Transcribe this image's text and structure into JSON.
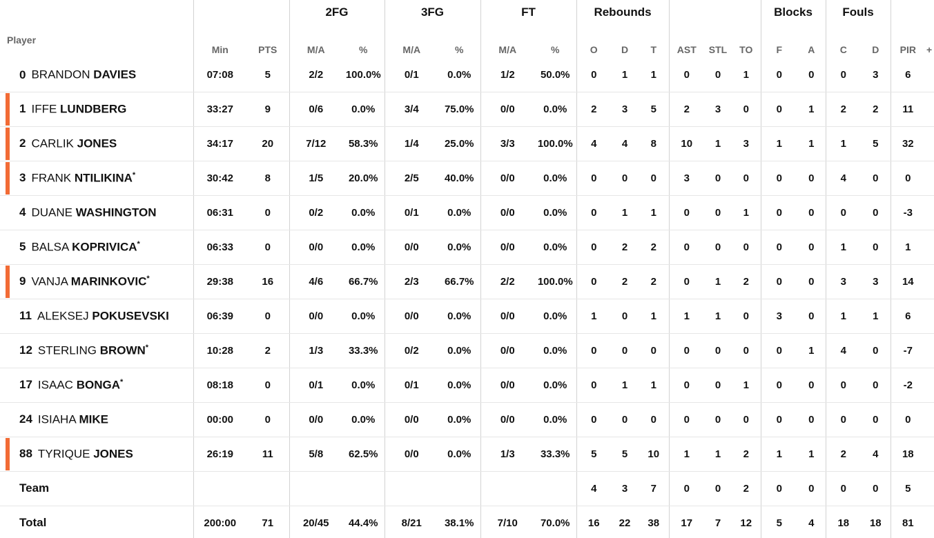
{
  "groups": {
    "fg2": "2FG",
    "fg3": "3FG",
    "ft": "FT",
    "reb": "Rebounds",
    "blk": "Blocks",
    "fouls": "Fouls"
  },
  "headers": {
    "player": "Player",
    "min": "Min",
    "pts": "PTS",
    "fg2_ma": "M/A",
    "fg2_pct": "%",
    "fg3_ma": "M/A",
    "fg3_pct": "%",
    "ft_ma": "M/A",
    "ft_pct": "%",
    "o": "O",
    "d": "D",
    "t": "T",
    "ast": "AST",
    "stl": "STL",
    "to": "TO",
    "blk_f": "F",
    "blk_a": "A",
    "foul_c": "C",
    "foul_d": "D",
    "pir": "PIR",
    "more": "+"
  },
  "players": [
    {
      "num": "0",
      "first": "BRANDON",
      "last": "DAVIES",
      "star": "",
      "starter": false,
      "min": "07:08",
      "pts": "5",
      "fg2": "2/2",
      "fg2p": "100.0%",
      "fg3": "0/1",
      "fg3p": "0.0%",
      "ft": "1/2",
      "ftp": "50.0%",
      "o": "0",
      "d": "1",
      "t": "1",
      "ast": "0",
      "stl": "0",
      "to": "1",
      "bf": "0",
      "ba": "0",
      "fc": "0",
      "fd": "3",
      "pir": "6"
    },
    {
      "num": "1",
      "first": "IFFE",
      "last": "LUNDBERG",
      "star": "",
      "starter": true,
      "min": "33:27",
      "pts": "9",
      "fg2": "0/6",
      "fg2p": "0.0%",
      "fg3": "3/4",
      "fg3p": "75.0%",
      "ft": "0/0",
      "ftp": "0.0%",
      "o": "2",
      "d": "3",
      "t": "5",
      "ast": "2",
      "stl": "3",
      "to": "0",
      "bf": "0",
      "ba": "1",
      "fc": "2",
      "fd": "2",
      "pir": "11"
    },
    {
      "num": "2",
      "first": "CARLIK",
      "last": "JONES",
      "star": "",
      "starter": true,
      "min": "34:17",
      "pts": "20",
      "fg2": "7/12",
      "fg2p": "58.3%",
      "fg3": "1/4",
      "fg3p": "25.0%",
      "ft": "3/3",
      "ftp": "100.0%",
      "o": "4",
      "d": "4",
      "t": "8",
      "ast": "10",
      "stl": "1",
      "to": "3",
      "bf": "1",
      "ba": "1",
      "fc": "1",
      "fd": "5",
      "pir": "32"
    },
    {
      "num": "3",
      "first": "FRANK",
      "last": "NTILIKINA",
      "star": "*",
      "starter": true,
      "min": "30:42",
      "pts": "8",
      "fg2": "1/5",
      "fg2p": "20.0%",
      "fg3": "2/5",
      "fg3p": "40.0%",
      "ft": "0/0",
      "ftp": "0.0%",
      "o": "0",
      "d": "0",
      "t": "0",
      "ast": "3",
      "stl": "0",
      "to": "0",
      "bf": "0",
      "ba": "0",
      "fc": "4",
      "fd": "0",
      "pir": "0"
    },
    {
      "num": "4",
      "first": "DUANE",
      "last": "WASHINGTON",
      "star": "",
      "starter": false,
      "min": "06:31",
      "pts": "0",
      "fg2": "0/2",
      "fg2p": "0.0%",
      "fg3": "0/1",
      "fg3p": "0.0%",
      "ft": "0/0",
      "ftp": "0.0%",
      "o": "0",
      "d": "1",
      "t": "1",
      "ast": "0",
      "stl": "0",
      "to": "1",
      "bf": "0",
      "ba": "0",
      "fc": "0",
      "fd": "0",
      "pir": "-3"
    },
    {
      "num": "5",
      "first": "BALSA",
      "last": "KOPRIVICA",
      "star": "*",
      "starter": false,
      "min": "06:33",
      "pts": "0",
      "fg2": "0/0",
      "fg2p": "0.0%",
      "fg3": "0/0",
      "fg3p": "0.0%",
      "ft": "0/0",
      "ftp": "0.0%",
      "o": "0",
      "d": "2",
      "t": "2",
      "ast": "0",
      "stl": "0",
      "to": "0",
      "bf": "0",
      "ba": "0",
      "fc": "1",
      "fd": "0",
      "pir": "1"
    },
    {
      "num": "9",
      "first": "VANJA",
      "last": "MARINKOVIC",
      "star": "*",
      "starter": true,
      "min": "29:38",
      "pts": "16",
      "fg2": "4/6",
      "fg2p": "66.7%",
      "fg3": "2/3",
      "fg3p": "66.7%",
      "ft": "2/2",
      "ftp": "100.0%",
      "o": "0",
      "d": "2",
      "t": "2",
      "ast": "0",
      "stl": "1",
      "to": "2",
      "bf": "0",
      "ba": "0",
      "fc": "3",
      "fd": "3",
      "pir": "14"
    },
    {
      "num": "11",
      "first": "ALEKSEJ",
      "last": "POKUSEVSKI",
      "star": "",
      "starter": false,
      "min": "06:39",
      "pts": "0",
      "fg2": "0/0",
      "fg2p": "0.0%",
      "fg3": "0/0",
      "fg3p": "0.0%",
      "ft": "0/0",
      "ftp": "0.0%",
      "o": "1",
      "d": "0",
      "t": "1",
      "ast": "1",
      "stl": "1",
      "to": "0",
      "bf": "3",
      "ba": "0",
      "fc": "1",
      "fd": "1",
      "pir": "6"
    },
    {
      "num": "12",
      "first": "STERLING",
      "last": "BROWN",
      "star": "*",
      "starter": false,
      "min": "10:28",
      "pts": "2",
      "fg2": "1/3",
      "fg2p": "33.3%",
      "fg3": "0/2",
      "fg3p": "0.0%",
      "ft": "0/0",
      "ftp": "0.0%",
      "o": "0",
      "d": "0",
      "t": "0",
      "ast": "0",
      "stl": "0",
      "to": "0",
      "bf": "0",
      "ba": "1",
      "fc": "4",
      "fd": "0",
      "pir": "-7"
    },
    {
      "num": "17",
      "first": "ISAAC",
      "last": "BONGA",
      "star": "*",
      "starter": false,
      "min": "08:18",
      "pts": "0",
      "fg2": "0/1",
      "fg2p": "0.0%",
      "fg3": "0/1",
      "fg3p": "0.0%",
      "ft": "0/0",
      "ftp": "0.0%",
      "o": "0",
      "d": "1",
      "t": "1",
      "ast": "0",
      "stl": "0",
      "to": "1",
      "bf": "0",
      "ba": "0",
      "fc": "0",
      "fd": "0",
      "pir": "-2"
    },
    {
      "num": "24",
      "first": "ISIAHA",
      "last": "MIKE",
      "star": "",
      "starter": false,
      "min": "00:00",
      "pts": "0",
      "fg2": "0/0",
      "fg2p": "0.0%",
      "fg3": "0/0",
      "fg3p": "0.0%",
      "ft": "0/0",
      "ftp": "0.0%",
      "o": "0",
      "d": "0",
      "t": "0",
      "ast": "0",
      "stl": "0",
      "to": "0",
      "bf": "0",
      "ba": "0",
      "fc": "0",
      "fd": "0",
      "pir": "0"
    },
    {
      "num": "88",
      "first": "TYRIQUE",
      "last": "JONES",
      "star": "",
      "starter": true,
      "min": "26:19",
      "pts": "11",
      "fg2": "5/8",
      "fg2p": "62.5%",
      "fg3": "0/0",
      "fg3p": "0.0%",
      "ft": "1/3",
      "ftp": "33.3%",
      "o": "5",
      "d": "5",
      "t": "10",
      "ast": "1",
      "stl": "1",
      "to": "2",
      "bf": "1",
      "ba": "1",
      "fc": "2",
      "fd": "4",
      "pir": "18"
    }
  ],
  "team": {
    "label": "Team",
    "o": "4",
    "d": "3",
    "t": "7",
    "ast": "0",
    "stl": "0",
    "to": "2",
    "bf": "0",
    "ba": "0",
    "fc": "0",
    "fd": "0",
    "pir": "5"
  },
  "total": {
    "label": "Total",
    "min": "200:00",
    "pts": "71",
    "fg2": "20/45",
    "fg2p": "44.4%",
    "fg3": "8/21",
    "fg3p": "38.1%",
    "ft": "7/10",
    "ftp": "70.0%",
    "o": "16",
    "d": "22",
    "t": "38",
    "ast": "17",
    "stl": "7",
    "to": "12",
    "bf": "5",
    "ba": "4",
    "fc": "18",
    "fd": "18",
    "pir": "81"
  },
  "colors": {
    "starter_marker": "#f26b35",
    "divider": "#d2d2d2",
    "row_border": "#e6e6e6"
  }
}
